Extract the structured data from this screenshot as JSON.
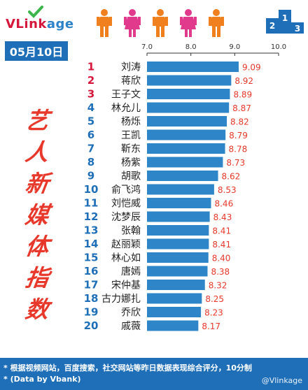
{
  "brand": {
    "name_a": "VLink",
    "name_b": "age"
  },
  "date_label": "05月10日",
  "side_title_chars": [
    "艺",
    "人",
    "新",
    "媒",
    "体",
    "指",
    "数"
  ],
  "colors": {
    "bar": "#2e86c8",
    "rank_top": "#d6163a",
    "rank": "#1f6fb8",
    "value": "#e8382b",
    "accent": "#e8382b",
    "brand_blue": "#1f6fb8",
    "orange": "#f07f1e",
    "pink": "#e13a8d"
  },
  "footer": {
    "note1": "* 根据视频网站，百度搜索，社交网站等昨日数据表现综合评分，10分制",
    "note2": "* (Data by Vbank)",
    "watermark": "@Vlinkage"
  },
  "chart_data": {
    "type": "bar",
    "orientation": "horizontal",
    "axis": {
      "ticks": [
        "7.0",
        "8.0",
        "9.0",
        "10.0"
      ],
      "range": [
        7.0,
        10.0
      ],
      "position": "top"
    },
    "grid": false,
    "ranks": [
      1,
      2,
      3,
      4,
      5,
      6,
      7,
      8,
      9,
      10,
      11,
      12,
      13,
      14,
      15,
      16,
      17,
      18,
      19,
      20
    ],
    "categories": [
      "刘涛",
      "蒋欣",
      "王子文",
      "林允儿",
      "杨烁",
      "王凯",
      "靳东",
      "杨紫",
      "胡歌",
      "俞飞鸿",
      "刘恺威",
      "沈梦辰",
      "张翰",
      "赵丽颖",
      "林心如",
      "唐嫣",
      "宋仲基",
      "古力娜扎",
      "乔欣",
      "戚薇"
    ],
    "values": [
      9.09,
      8.92,
      8.89,
      8.87,
      8.82,
      8.79,
      8.78,
      8.73,
      8.62,
      8.53,
      8.46,
      8.43,
      8.41,
      8.41,
      8.4,
      8.38,
      8.32,
      8.25,
      8.23,
      8.17
    ],
    "value_labels": [
      "9.09",
      "8.92",
      "8.89",
      "8.87",
      "8.82",
      "8.79",
      "8.78",
      "8.73",
      "8.62",
      "8.53",
      "8.46",
      "8.43",
      "8.41",
      "8.41",
      "8.40",
      "8.38",
      "8.32",
      "8.25",
      "8.23",
      "8.17"
    ]
  }
}
